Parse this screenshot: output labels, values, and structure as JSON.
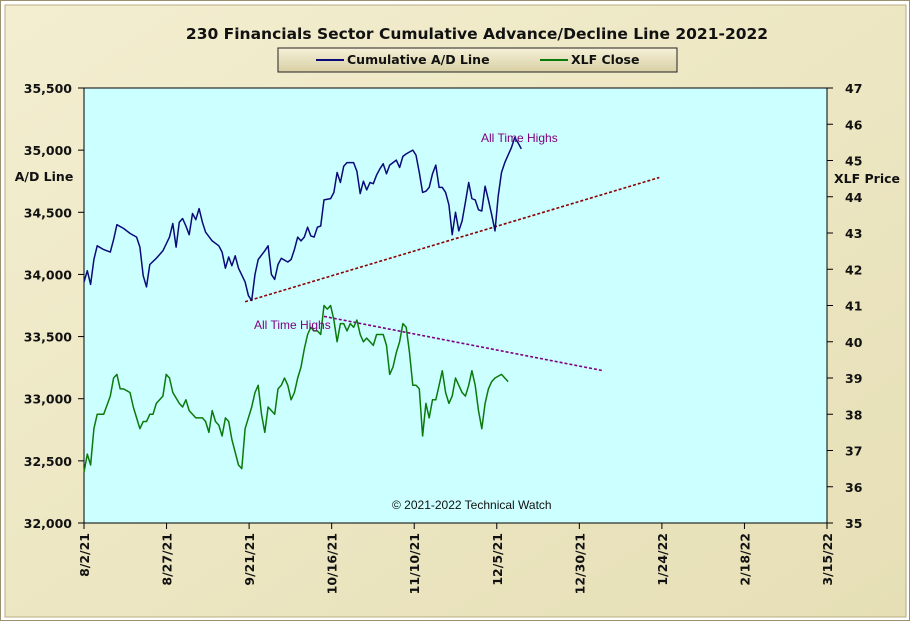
{
  "chart_data": {
    "type": "line",
    "title": "230 Financials  Sector Cumulative  Advance/Decline  Line 2021-2022",
    "ylabel_left": "A/D Line",
    "ylabel_right": "XLF Price",
    "copyright": "© 2021-2022  Technical Watch",
    "legend": [
      "Cumulative A/D Line",
      "XLF Close"
    ],
    "legend_position": "top-center",
    "colors": {
      "ad_line": "#0a0a78",
      "xlf": "#0a7a0a",
      "trendline": "#8b0000",
      "annotation": "#800080",
      "plot_bg": "#ccffff",
      "page_bg": "#f0ebc8"
    },
    "x_ticks": [
      "8/2/21",
      "8/27/21",
      "9/21/21",
      "10/16/21",
      "11/10/21",
      "12/5/21",
      "12/30/21",
      "1/24/22",
      "2/18/22",
      "3/15/22"
    ],
    "x_range": [
      "8/2/21",
      "3/15/22"
    ],
    "y_left": {
      "min": 32000,
      "max": 35500,
      "ticks": [
        "32,000",
        "32,500",
        "33,000",
        "33,500",
        "34,000",
        "34,500",
        "35,000",
        "35,500"
      ]
    },
    "y_right": {
      "min": 35,
      "max": 47,
      "ticks": [
        "35",
        "36",
        "37",
        "38",
        "39",
        "40",
        "41",
        "42",
        "43",
        "44",
        "45",
        "46",
        "47"
      ]
    },
    "annotations": [
      {
        "text": "All Time Highs",
        "series": "Cumulative A/D Line"
      },
      {
        "text": "All Time Highs",
        "series": "XLF Close"
      }
    ],
    "series": [
      {
        "name": "Cumulative A/D Line",
        "axis": "left",
        "points": [
          [
            0,
            33940
          ],
          [
            1,
            34030
          ],
          [
            2,
            33920
          ],
          [
            3,
            34120
          ],
          [
            4,
            34230
          ],
          [
            6,
            34200
          ],
          [
            8,
            34180
          ],
          [
            9,
            34280
          ],
          [
            10,
            34400
          ],
          [
            12,
            34370
          ],
          [
            14,
            34330
          ],
          [
            16,
            34300
          ],
          [
            17,
            34220
          ],
          [
            18,
            33990
          ],
          [
            19,
            33900
          ],
          [
            20,
            34080
          ],
          [
            22,
            34130
          ],
          [
            24,
            34190
          ],
          [
            26,
            34300
          ],
          [
            27,
            34410
          ],
          [
            28,
            34220
          ],
          [
            29,
            34420
          ],
          [
            30,
            34450
          ],
          [
            31,
            34390
          ],
          [
            32,
            34320
          ],
          [
            33,
            34490
          ],
          [
            34,
            34440
          ],
          [
            35,
            34530
          ],
          [
            36,
            34420
          ],
          [
            37,
            34340
          ],
          [
            39,
            34270
          ],
          [
            41,
            34230
          ],
          [
            42,
            34180
          ],
          [
            43,
            34050
          ],
          [
            44,
            34140
          ],
          [
            45,
            34070
          ],
          [
            46,
            34150
          ],
          [
            47,
            34050
          ],
          [
            49,
            33940
          ],
          [
            50,
            33830
          ],
          [
            51,
            33790
          ],
          [
            52,
            34000
          ],
          [
            53,
            34120
          ],
          [
            55,
            34190
          ],
          [
            56,
            34230
          ],
          [
            57,
            34000
          ],
          [
            58,
            33960
          ],
          [
            59,
            34080
          ],
          [
            60,
            34130
          ],
          [
            62,
            34100
          ],
          [
            63,
            34120
          ],
          [
            64,
            34200
          ],
          [
            65,
            34300
          ],
          [
            66,
            34270
          ],
          [
            67,
            34300
          ],
          [
            68,
            34380
          ],
          [
            69,
            34310
          ],
          [
            70,
            34300
          ],
          [
            71,
            34380
          ],
          [
            72,
            34390
          ],
          [
            73,
            34600
          ],
          [
            75,
            34610
          ],
          [
            76,
            34660
          ],
          [
            77,
            34820
          ],
          [
            78,
            34740
          ],
          [
            79,
            34870
          ],
          [
            80,
            34900
          ],
          [
            82,
            34900
          ],
          [
            83,
            34830
          ],
          [
            84,
            34650
          ],
          [
            85,
            34750
          ],
          [
            86,
            34680
          ],
          [
            87,
            34740
          ],
          [
            88,
            34730
          ],
          [
            89,
            34800
          ],
          [
            90,
            34850
          ],
          [
            91,
            34890
          ],
          [
            92,
            34810
          ],
          [
            93,
            34880
          ],
          [
            95,
            34920
          ],
          [
            96,
            34860
          ],
          [
            97,
            34950
          ],
          [
            98,
            34970
          ],
          [
            100,
            35000
          ],
          [
            101,
            34960
          ],
          [
            102,
            34820
          ],
          [
            103,
            34660
          ],
          [
            104,
            34670
          ],
          [
            105,
            34700
          ],
          [
            106,
            34810
          ],
          [
            107,
            34880
          ],
          [
            108,
            34700
          ],
          [
            109,
            34700
          ],
          [
            110,
            34660
          ],
          [
            111,
            34560
          ],
          [
            112,
            34320
          ],
          [
            113,
            34500
          ],
          [
            114,
            34350
          ],
          [
            115,
            34430
          ],
          [
            116,
            34580
          ],
          [
            117,
            34740
          ],
          [
            118,
            34610
          ],
          [
            119,
            34600
          ],
          [
            120,
            34520
          ],
          [
            121,
            34510
          ],
          [
            122,
            34710
          ],
          [
            123,
            34600
          ],
          [
            124,
            34480
          ],
          [
            125,
            34350
          ],
          [
            126,
            34630
          ],
          [
            127,
            34820
          ],
          [
            128,
            34900
          ],
          [
            129,
            34960
          ],
          [
            130,
            35020
          ],
          [
            131,
            35100
          ],
          [
            132,
            35060
          ],
          [
            133,
            35010
          ]
        ]
      },
      {
        "name": "XLF Close",
        "axis": "right",
        "points": [
          [
            0,
            36.4
          ],
          [
            1,
            36.9
          ],
          [
            2,
            36.6
          ],
          [
            3,
            37.6
          ],
          [
            4,
            38.0
          ],
          [
            6,
            38.0
          ],
          [
            8,
            38.5
          ],
          [
            9,
            39.0
          ],
          [
            10,
            39.1
          ],
          [
            11,
            38.7
          ],
          [
            12,
            38.7
          ],
          [
            14,
            38.6
          ],
          [
            15,
            38.2
          ],
          [
            16,
            37.9
          ],
          [
            17,
            37.6
          ],
          [
            18,
            37.8
          ],
          [
            19,
            37.8
          ],
          [
            20,
            38.0
          ],
          [
            21,
            38.0
          ],
          [
            22,
            38.3
          ],
          [
            24,
            38.5
          ],
          [
            25,
            39.1
          ],
          [
            26,
            39.0
          ],
          [
            27,
            38.6
          ],
          [
            29,
            38.3
          ],
          [
            30,
            38.2
          ],
          [
            31,
            38.4
          ],
          [
            32,
            38.1
          ],
          [
            33,
            38.0
          ],
          [
            34,
            37.9
          ],
          [
            36,
            37.9
          ],
          [
            37,
            37.8
          ],
          [
            38,
            37.5
          ],
          [
            39,
            38.1
          ],
          [
            40,
            37.8
          ],
          [
            41,
            37.7
          ],
          [
            42,
            37.4
          ],
          [
            43,
            37.9
          ],
          [
            44,
            37.8
          ],
          [
            45,
            37.3
          ],
          [
            47,
            36.6
          ],
          [
            48,
            36.5
          ],
          [
            49,
            37.6
          ],
          [
            51,
            38.2
          ],
          [
            52,
            38.6
          ],
          [
            53,
            38.8
          ],
          [
            54,
            38.0
          ],
          [
            55,
            37.5
          ],
          [
            56,
            38.2
          ],
          [
            57,
            38.1
          ],
          [
            58,
            38.0
          ],
          [
            59,
            38.7
          ],
          [
            60,
            38.8
          ],
          [
            61,
            39.0
          ],
          [
            62,
            38.8
          ],
          [
            63,
            38.4
          ],
          [
            64,
            38.6
          ],
          [
            65,
            39.0
          ],
          [
            66,
            39.3
          ],
          [
            67,
            39.8
          ],
          [
            68,
            40.2
          ],
          [
            69,
            40.4
          ],
          [
            70,
            40.3
          ],
          [
            71,
            40.3
          ],
          [
            72,
            40.2
          ],
          [
            73,
            41.0
          ],
          [
            74,
            40.9
          ],
          [
            75,
            41.0
          ],
          [
            76,
            40.6
          ],
          [
            77,
            40.0
          ],
          [
            78,
            40.5
          ],
          [
            79,
            40.5
          ],
          [
            80,
            40.3
          ],
          [
            81,
            40.5
          ],
          [
            82,
            40.4
          ],
          [
            83,
            40.6
          ],
          [
            84,
            40.2
          ],
          [
            85,
            40.0
          ],
          [
            86,
            40.1
          ],
          [
            87,
            40.0
          ],
          [
            88,
            39.9
          ],
          [
            89,
            40.2
          ],
          [
            90,
            40.2
          ],
          [
            91,
            40.2
          ],
          [
            92,
            39.9
          ],
          [
            93,
            39.1
          ],
          [
            94,
            39.3
          ],
          [
            95,
            39.7
          ],
          [
            96,
            40.0
          ],
          [
            97,
            40.5
          ],
          [
            98,
            40.4
          ],
          [
            99,
            39.7
          ],
          [
            100,
            38.8
          ],
          [
            101,
            38.8
          ],
          [
            102,
            38.7
          ],
          [
            103,
            37.4
          ],
          [
            104,
            38.3
          ],
          [
            105,
            37.9
          ],
          [
            106,
            38.4
          ],
          [
            107,
            38.4
          ],
          [
            108,
            38.8
          ],
          [
            109,
            39.2
          ],
          [
            110,
            38.6
          ],
          [
            111,
            38.3
          ],
          [
            112,
            38.5
          ],
          [
            113,
            39.0
          ],
          [
            114,
            38.8
          ],
          [
            115,
            38.6
          ],
          [
            116,
            38.5
          ],
          [
            117,
            38.8
          ],
          [
            118,
            39.2
          ],
          [
            119,
            38.8
          ],
          [
            120,
            38.1
          ],
          [
            121,
            37.6
          ],
          [
            122,
            38.3
          ],
          [
            123,
            38.7
          ],
          [
            124,
            38.9
          ],
          [
            125,
            39.0
          ],
          [
            127,
            39.1
          ],
          [
            128,
            39.0
          ],
          [
            129,
            38.9
          ]
        ]
      }
    ],
    "trendlines": [
      {
        "series": "Cumulative A/D Line",
        "axis": "left",
        "from": [
          49,
          33780
        ],
        "to": [
          175,
          34780
        ]
      },
      {
        "series": "XLF Close",
        "axis": "right",
        "from": [
          73,
          40.7
        ],
        "to": [
          158,
          39.2
        ]
      }
    ],
    "x_unit": "trading days from 8/2/21",
    "x_max_days": 226
  }
}
